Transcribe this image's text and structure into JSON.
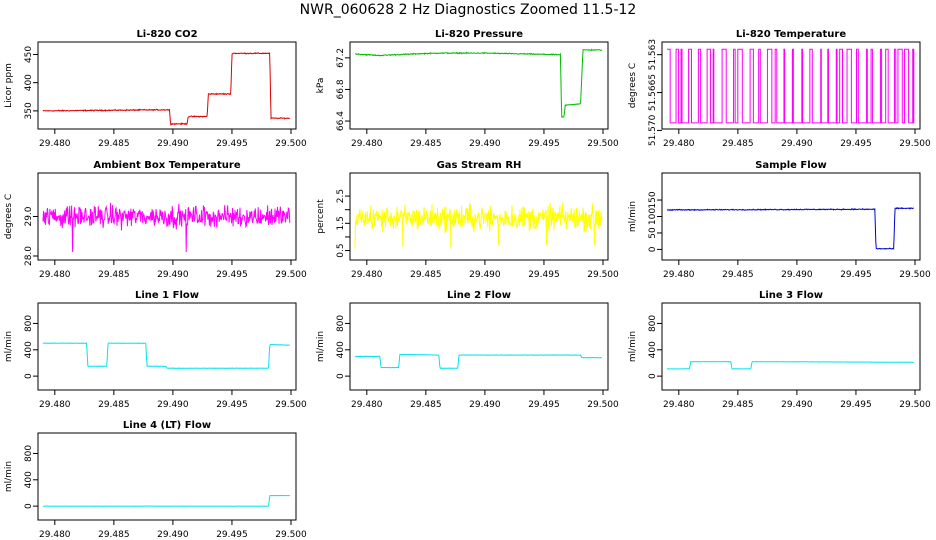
{
  "page_title": "NWR_060628  2 Hz Diagnostics Zoomed 11.5-12",
  "chart_data": [
    {
      "type": "line",
      "title": "Li-820 CO2",
      "ylabel": "Licor ppm",
      "xlabel": "",
      "xlim": [
        29.479,
        29.5
      ],
      "ylim": [
        325,
        465
      ],
      "x_ticks": [
        29.48,
        29.485,
        29.49,
        29.495,
        29.5
      ],
      "x_tick_labels": [
        "29.480",
        "29.485",
        "29.490",
        "29.495",
        "29.500"
      ],
      "y_ticks": [
        350,
        400,
        450
      ],
      "y_tick_labels": [
        "350",
        "400",
        "450"
      ],
      "color": "#dd0000",
      "noise": 0.8,
      "series": [
        {
          "x": [
            29.479,
            29.4897,
            29.4898,
            29.4912,
            29.4913,
            29.4929,
            29.493,
            29.4949,
            29.495,
            29.4982,
            29.4983,
            29.4999
          ],
          "y": [
            350,
            352,
            327,
            327,
            340,
            340,
            380,
            380,
            452,
            452,
            337,
            337
          ]
        }
      ]
    },
    {
      "type": "line",
      "title": "Li-820 Pressure",
      "ylabel": "kPa",
      "xlabel": "",
      "xlim": [
        29.479,
        29.5
      ],
      "ylim": [
        66.35,
        67.35
      ],
      "x_ticks": [
        29.48,
        29.485,
        29.49,
        29.495,
        29.5
      ],
      "x_tick_labels": [
        "29.480",
        "29.485",
        "29.490",
        "29.495",
        "29.500"
      ],
      "y_ticks": [
        66.4,
        66.8,
        67.2
      ],
      "y_tick_labels": [
        "66.4",
        "66.8",
        "67.2"
      ],
      "color": "#00bb00",
      "noise": 0.005,
      "series": [
        {
          "x": [
            29.479,
            29.481,
            29.484,
            29.486,
            29.49,
            29.4964,
            29.4965,
            29.4967,
            29.4968,
            29.4981,
            29.4983,
            29.4999
          ],
          "y": [
            67.25,
            67.23,
            67.25,
            67.26,
            67.26,
            67.24,
            66.45,
            66.45,
            66.6,
            66.62,
            67.3,
            67.3
          ]
        }
      ]
    },
    {
      "type": "line",
      "title": "Li-820 Temperature",
      "ylabel": "degrees C",
      "xlabel": "",
      "xlim": [
        29.479,
        29.5
      ],
      "ylim": [
        51.5695,
        51.5622
      ],
      "x_ticks": [
        29.48,
        29.485,
        29.49,
        29.495,
        29.5
      ],
      "x_tick_labels": [
        "29.480",
        "29.485",
        "29.490",
        "29.495",
        "29.500"
      ],
      "y_ticks": [
        51.57,
        51.5665,
        51.563
      ],
      "y_tick_labels": [
        "51.570",
        "51.5665",
        "51.563"
      ],
      "color": "#ff00ff",
      "noise": 0,
      "series": [
        {
          "x": [],
          "y": []
        }
      ]
    },
    {
      "type": "line",
      "title": "Ambient Box Temperature",
      "ylabel": "degrees C",
      "xlabel": "",
      "xlim": [
        29.479,
        29.5
      ],
      "ylim": [
        28.0,
        30.0
      ],
      "x_ticks": [
        29.48,
        29.485,
        29.49,
        29.495,
        29.5
      ],
      "x_tick_labels": [
        "29.480",
        "29.485",
        "29.490",
        "29.495",
        "29.500"
      ],
      "y_ticks": [
        28.0,
        29.0
      ],
      "y_tick_labels": [
        "28.0",
        "29.0"
      ],
      "color": "#ff00ff",
      "noise": 0.22,
      "series": [
        {
          "x": [
            29.479,
            29.4999
          ],
          "y": [
            29.0,
            29.0
          ]
        }
      ]
    },
    {
      "type": "line",
      "title": "Gas Stream RH",
      "ylabel": "percent",
      "xlabel": "",
      "xlim": [
        29.479,
        29.5
      ],
      "ylim": [
        0.3,
        3.2
      ],
      "x_ticks": [
        29.48,
        29.485,
        29.49,
        29.495,
        29.5
      ],
      "x_tick_labels": [
        "29.480",
        "29.485",
        "29.490",
        "29.495",
        "29.500"
      ],
      "y_ticks": [
        0.5,
        1.5,
        2.5
      ],
      "y_tick_labels": [
        "0.5",
        "1.5",
        "2.5"
      ],
      "y_ticks_minor": [
        1.0,
        2.0
      ],
      "color": "#ffff00",
      "noise": 0.38,
      "series": [
        {
          "x": [
            29.479,
            29.4999
          ],
          "y": [
            1.7,
            1.7
          ]
        }
      ]
    },
    {
      "type": "line",
      "title": "Sample Flow",
      "ylabel": "ml/min",
      "xlabel": "",
      "xlim": [
        29.479,
        29.5
      ],
      "ylim": [
        -20,
        220
      ],
      "x_ticks": [
        29.48,
        29.485,
        29.49,
        29.495,
        29.5
      ],
      "x_tick_labels": [
        "29.480",
        "29.485",
        "29.490",
        "29.495",
        "29.500"
      ],
      "y_ticks": [
        0,
        50,
        100,
        150
      ],
      "y_tick_labels": [
        "0",
        "50",
        "100",
        "150"
      ],
      "color": "#0000cc",
      "noise": 1.2,
      "series": [
        {
          "x": [
            29.479,
            29.4966,
            29.4967,
            29.4982,
            29.4983,
            29.4999
          ],
          "y": [
            120,
            122,
            2,
            2,
            125,
            125
          ]
        }
      ]
    },
    {
      "type": "line",
      "title": "Line 1 Flow",
      "ylabel": "ml/min",
      "xlabel": "",
      "xlim": [
        29.479,
        29.5
      ],
      "ylim": [
        -150,
        1050
      ],
      "x_ticks": [
        29.48,
        29.485,
        29.49,
        29.495,
        29.5
      ],
      "x_tick_labels": [
        "29.480",
        "29.485",
        "29.490",
        "29.495",
        "29.500"
      ],
      "y_ticks": [
        0,
        400,
        800
      ],
      "y_tick_labels": [
        "0",
        "400",
        "800"
      ],
      "color": "#00e5ee",
      "noise": 3,
      "series": [
        {
          "x": [
            29.479,
            29.4827,
            29.4828,
            29.4844,
            29.4845,
            29.4877,
            29.4878,
            29.4894,
            29.4895,
            29.4981,
            29.4982,
            29.4999
          ],
          "y": [
            500,
            500,
            150,
            150,
            500,
            500,
            150,
            150,
            120,
            120,
            480,
            470
          ]
        }
      ]
    },
    {
      "type": "line",
      "title": "Line 2 Flow",
      "ylabel": "ml/min",
      "xlabel": "",
      "xlim": [
        29.479,
        29.5
      ],
      "ylim": [
        -150,
        1050
      ],
      "x_ticks": [
        29.48,
        29.485,
        29.49,
        29.495,
        29.5
      ],
      "x_tick_labels": [
        "29.480",
        "29.485",
        "29.490",
        "29.495",
        "29.500"
      ],
      "y_ticks": [
        0,
        400,
        800
      ],
      "y_tick_labels": [
        "0",
        "400",
        "800"
      ],
      "color": "#00e5ee",
      "noise": 3,
      "series": [
        {
          "x": [
            29.479,
            29.4811,
            29.4812,
            29.4827,
            29.4828,
            29.4861,
            29.4862,
            29.4877,
            29.4878,
            29.4981,
            29.4982,
            29.4999
          ],
          "y": [
            300,
            300,
            130,
            130,
            330,
            320,
            120,
            120,
            320,
            320,
            280,
            280
          ]
        }
      ]
    },
    {
      "type": "line",
      "title": "Line 3 Flow",
      "ylabel": "ml/min",
      "xlabel": "",
      "xlim": [
        29.479,
        29.5
      ],
      "ylim": [
        -150,
        1050
      ],
      "x_ticks": [
        29.48,
        29.485,
        29.49,
        29.495,
        29.5
      ],
      "x_tick_labels": [
        "29.480",
        "29.485",
        "29.490",
        "29.495",
        "29.500"
      ],
      "y_ticks": [
        0,
        400,
        800
      ],
      "y_tick_labels": [
        "0",
        "400",
        "800"
      ],
      "color": "#00e5ee",
      "noise": 2,
      "series": [
        {
          "x": [
            29.479,
            29.4809,
            29.481,
            29.4844,
            29.4845,
            29.4861,
            29.4862,
            29.4999
          ],
          "y": [
            110,
            110,
            220,
            220,
            110,
            110,
            220,
            210
          ]
        }
      ]
    },
    {
      "type": "line",
      "title": "Line 4 (LT) Flow",
      "ylabel": "ml/min",
      "xlabel": "",
      "xlim": [
        29.479,
        29.5
      ],
      "ylim": [
        -150,
        1050
      ],
      "x_ticks": [
        29.48,
        29.485,
        29.49,
        29.495,
        29.5
      ],
      "x_tick_labels": [
        "29.480",
        "29.485",
        "29.490",
        "29.495",
        "29.500"
      ],
      "y_ticks": [
        0,
        400,
        800
      ],
      "y_tick_labels": [
        "0",
        "400",
        "800"
      ],
      "color": "#00e5ee",
      "noise": 1.5,
      "series": [
        {
          "x": [
            29.479,
            29.4981,
            29.4982,
            29.4999
          ],
          "y": [
            0,
            0,
            160,
            160
          ]
        }
      ]
    }
  ]
}
